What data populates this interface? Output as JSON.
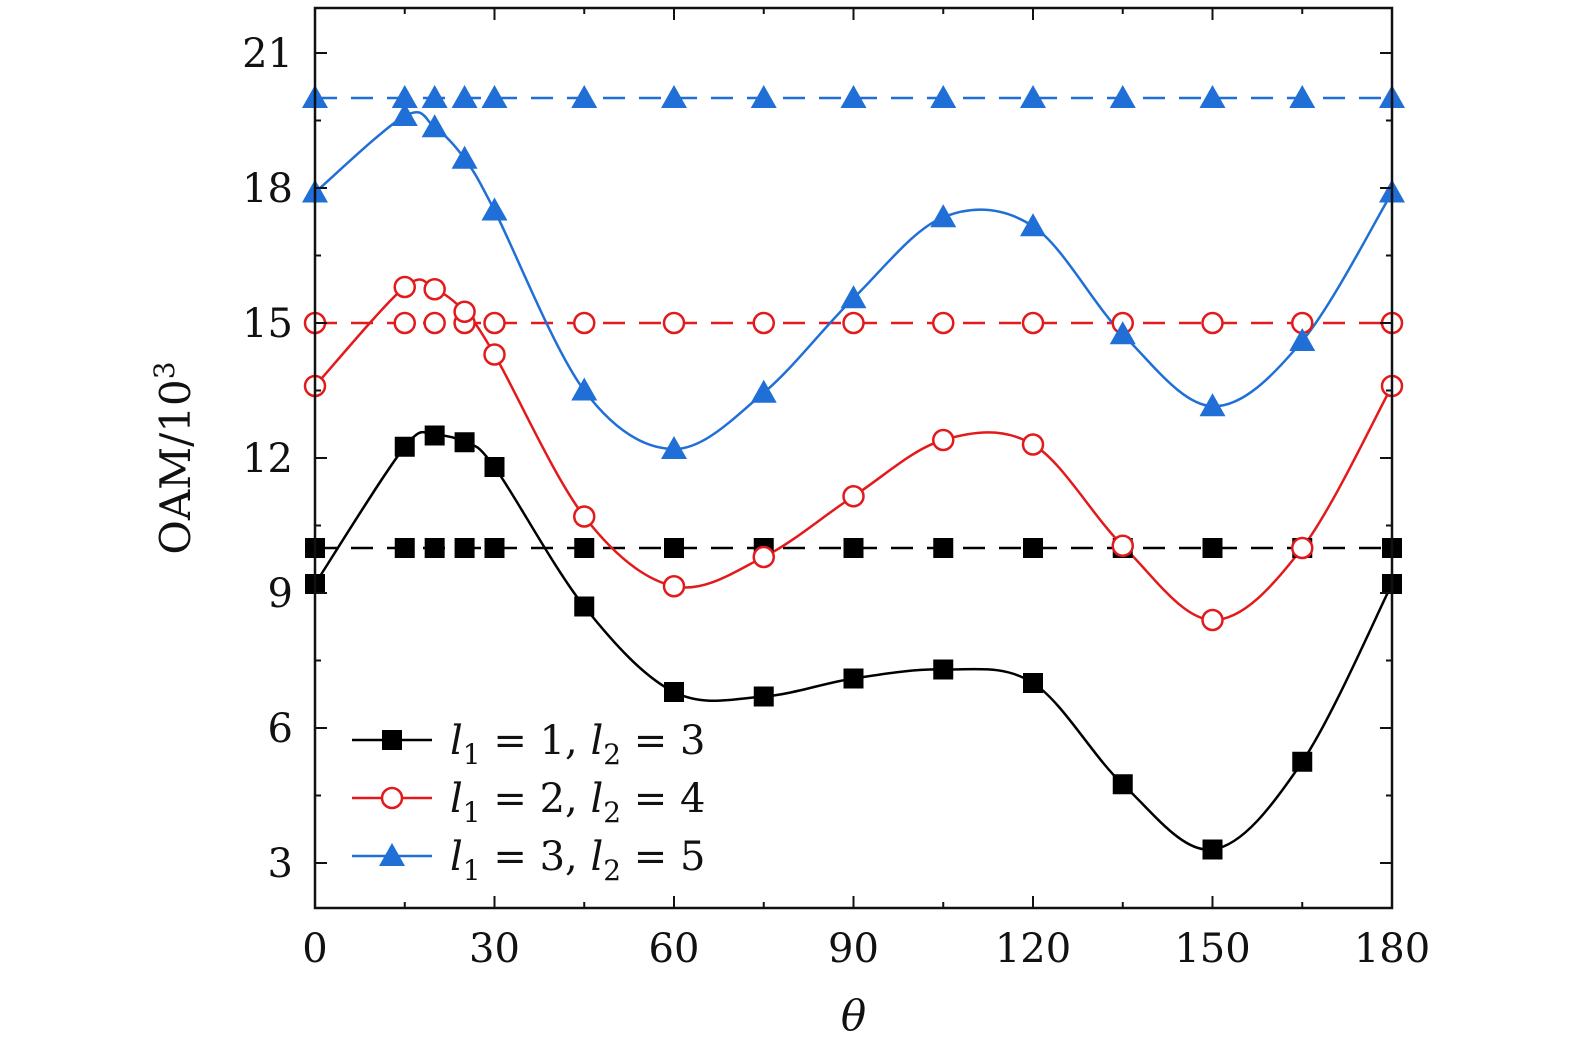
{
  "chart_data": {
    "type": "line",
    "title": "",
    "xlabel": "θ",
    "ylabel": "OAM/10",
    "ylabel_superscript": "3",
    "xlim": [
      0,
      180
    ],
    "ylim": [
      2,
      22
    ],
    "xticks": [
      0,
      30,
      60,
      90,
      120,
      150,
      180
    ],
    "xtick_labels": [
      "0",
      "30",
      "60",
      "90",
      "120",
      "150",
      "180"
    ],
    "yticks": [
      3,
      6,
      9,
      12,
      15,
      18,
      21
    ],
    "ytick_labels": [
      "3",
      "6",
      "9",
      "12",
      "15",
      "18",
      "21"
    ],
    "x": [
      0,
      15,
      20,
      25,
      30,
      45,
      60,
      75,
      90,
      105,
      120,
      135,
      150,
      165,
      180
    ],
    "legend_position": "bottom-left",
    "series": [
      {
        "name": "l1 = 1, l2 = 3",
        "legend_parts": [
          "l",
          "1",
          " = 1,  ",
          "l",
          "2",
          " = 3"
        ],
        "color": "#000000",
        "marker": "square",
        "values": [
          9.2,
          12.25,
          12.5,
          12.35,
          11.8,
          8.7,
          6.8,
          6.7,
          7.1,
          7.3,
          7.0,
          4.75,
          3.3,
          5.25,
          9.2
        ],
        "reference_value": 10
      },
      {
        "name": "l1 = 2, l2 = 4",
        "legend_parts": [
          "l",
          "1",
          " = 2,  ",
          "l",
          "2",
          " = 4"
        ],
        "color": "#e31a1c",
        "marker": "circle",
        "values": [
          13.6,
          15.8,
          15.75,
          15.25,
          14.3,
          10.7,
          9.15,
          9.8,
          11.15,
          12.4,
          12.3,
          10.05,
          8.4,
          10.0,
          13.6
        ],
        "reference_value": 15
      },
      {
        "name": "l1 = 3, l2 = 5",
        "legend_parts": [
          "l",
          "1",
          " = 3,  ",
          "l",
          "2",
          " = 5"
        ],
        "color": "#1f6fd6",
        "marker": "triangle",
        "values": [
          17.9,
          19.6,
          19.35,
          18.65,
          17.5,
          13.5,
          12.2,
          13.45,
          15.55,
          17.35,
          17.15,
          14.75,
          13.15,
          14.6,
          17.9
        ],
        "reference_value": 20
      }
    ]
  }
}
